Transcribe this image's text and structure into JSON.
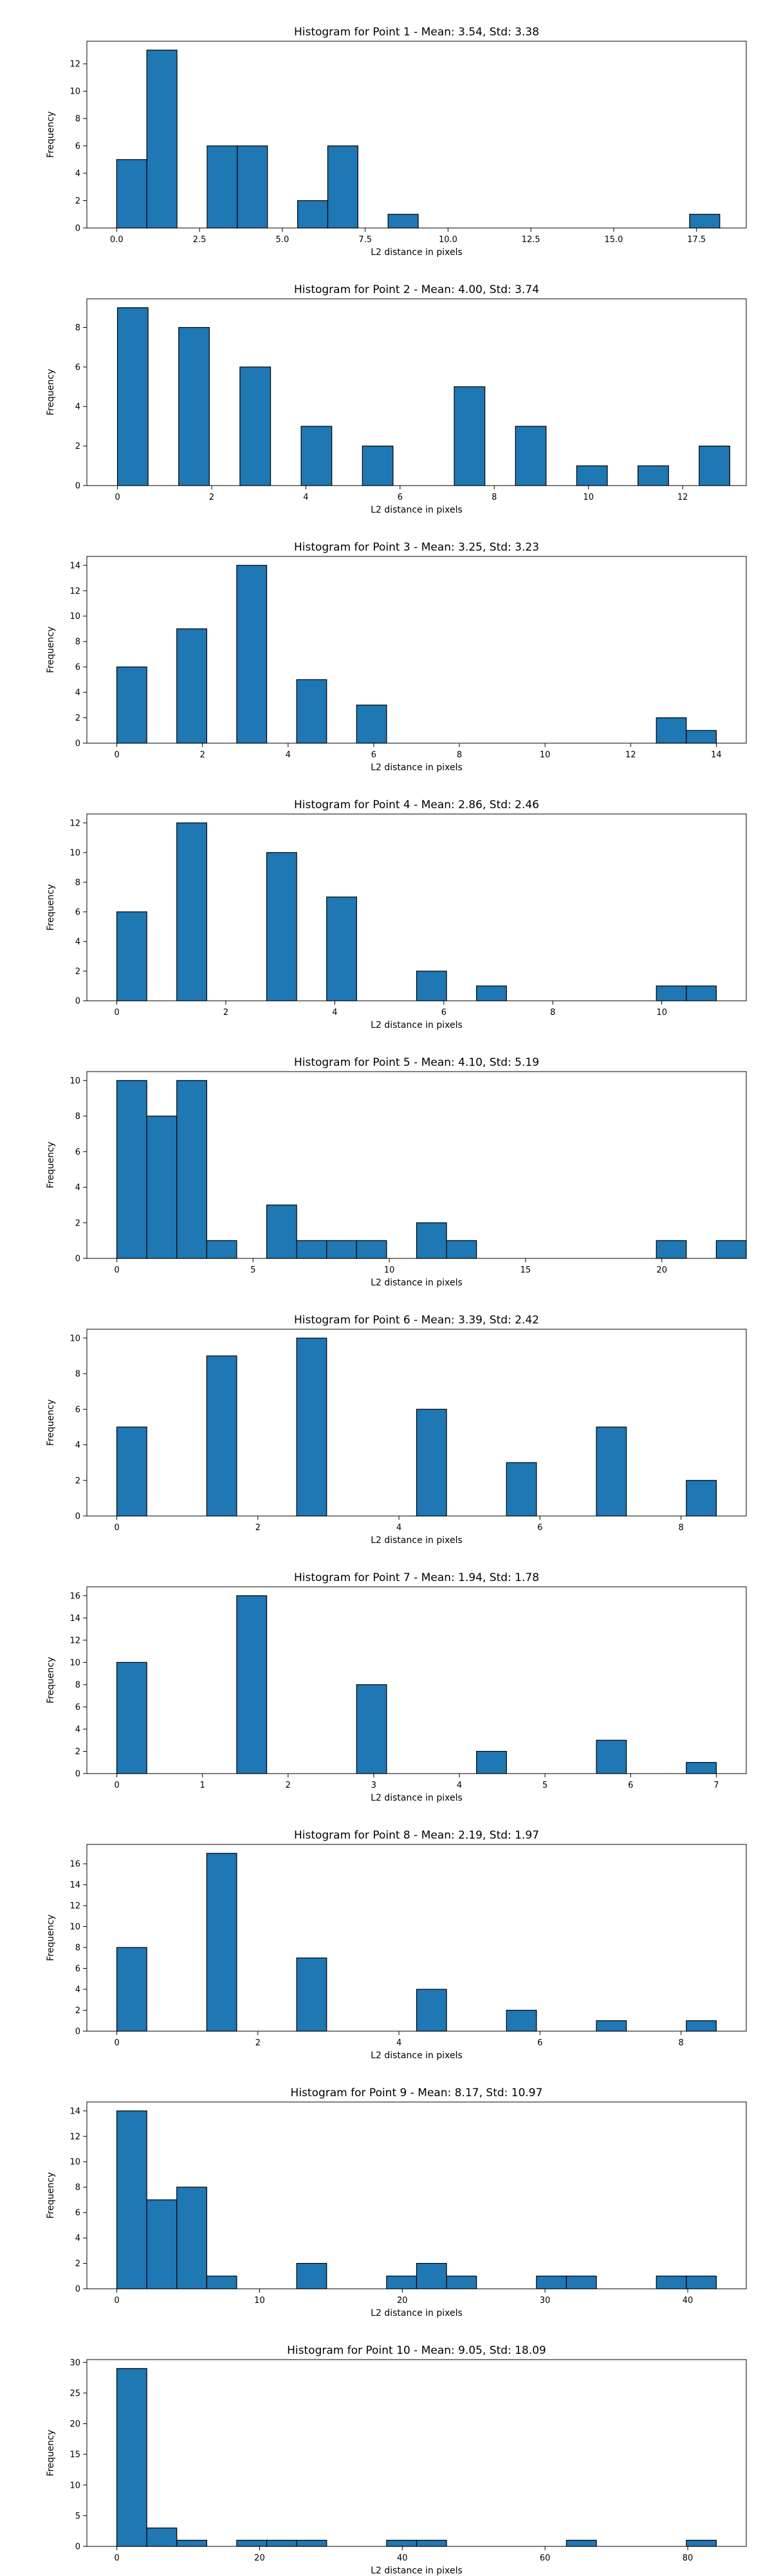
{
  "chart_data": [
    {
      "type": "bar",
      "title": "Histogram for Point 1 - Mean: 3.54, Std: 3.38",
      "xlabel": "L2 distance in pixels",
      "ylabel": "Frequency",
      "xlim": [
        -0.9,
        19.0
      ],
      "ylim": [
        0,
        13.65
      ],
      "xticks": [
        0,
        2.5,
        5,
        7.5,
        10,
        12.5,
        15,
        17.5
      ],
      "xtick_labels": [
        "0.0",
        "2.5",
        "5.0",
        "7.5",
        "10.0",
        "12.5",
        "15.0",
        "17.5"
      ],
      "yticks": [
        0,
        2,
        4,
        6,
        8,
        10,
        12
      ],
      "grid": false,
      "bins": [
        {
          "x0": 0.0,
          "x1": 0.91,
          "count": 5
        },
        {
          "x0": 0.91,
          "x1": 1.82,
          "count": 13
        },
        {
          "x0": 2.73,
          "x1": 3.64,
          "count": 6
        },
        {
          "x0": 3.64,
          "x1": 4.55,
          "count": 6
        },
        {
          "x0": 5.46,
          "x1": 6.37,
          "count": 2
        },
        {
          "x0": 6.37,
          "x1": 7.28,
          "count": 6
        },
        {
          "x0": 8.19,
          "x1": 9.1,
          "count": 1
        },
        {
          "x0": 17.29,
          "x1": 18.2,
          "count": 1
        }
      ]
    },
    {
      "type": "bar",
      "title": "Histogram for Point 2 - Mean: 4.00, Std: 3.74",
      "xlabel": "L2 distance in pixels",
      "ylabel": "Frequency",
      "xlim": [
        -0.65,
        13.35
      ],
      "ylim": [
        0,
        9.45
      ],
      "xticks": [
        0,
        2,
        4,
        6,
        8,
        10,
        12
      ],
      "xtick_labels": [
        "0",
        "2",
        "4",
        "6",
        "8",
        "10",
        "12"
      ],
      "yticks": [
        0,
        2,
        4,
        6,
        8
      ],
      "grid": false,
      "bins": [
        {
          "x0": 0.0,
          "x1": 0.65,
          "count": 9
        },
        {
          "x0": 1.3,
          "x1": 1.95,
          "count": 8
        },
        {
          "x0": 2.6,
          "x1": 3.25,
          "count": 6
        },
        {
          "x0": 3.9,
          "x1": 4.55,
          "count": 3
        },
        {
          "x0": 5.2,
          "x1": 5.85,
          "count": 2
        },
        {
          "x0": 7.15,
          "x1": 7.8,
          "count": 5
        },
        {
          "x0": 8.45,
          "x1": 9.1,
          "count": 3
        },
        {
          "x0": 9.75,
          "x1": 10.4,
          "count": 1
        },
        {
          "x0": 11.05,
          "x1": 11.7,
          "count": 1
        },
        {
          "x0": 12.35,
          "x1": 13.0,
          "count": 2
        }
      ]
    },
    {
      "type": "bar",
      "title": "Histogram for Point 3 - Mean: 3.25, Std: 3.23",
      "xlabel": "L2 distance in pixels",
      "ylabel": "Frequency",
      "xlim": [
        -0.7,
        14.7
      ],
      "ylim": [
        0,
        14.7
      ],
      "xticks": [
        0,
        2,
        4,
        6,
        8,
        10,
        12,
        14
      ],
      "xtick_labels": [
        "0",
        "2",
        "4",
        "6",
        "8",
        "10",
        "12",
        "14"
      ],
      "yticks": [
        0,
        2,
        4,
        6,
        8,
        10,
        12,
        14
      ],
      "grid": false,
      "bins": [
        {
          "x0": 0.0,
          "x1": 0.7,
          "count": 6
        },
        {
          "x0": 1.4,
          "x1": 2.1,
          "count": 9
        },
        {
          "x0": 2.8,
          "x1": 3.5,
          "count": 14
        },
        {
          "x0": 4.2,
          "x1": 4.9,
          "count": 5
        },
        {
          "x0": 5.6,
          "x1": 6.3,
          "count": 3
        },
        {
          "x0": 12.6,
          "x1": 13.3,
          "count": 2
        },
        {
          "x0": 13.3,
          "x1": 14.0,
          "count": 1
        }
      ]
    },
    {
      "type": "bar",
      "title": "Histogram for Point 4 - Mean: 2.86, Std: 2.46",
      "xlabel": "L2 distance in pixels",
      "ylabel": "Frequency",
      "xlim": [
        -0.55,
        11.55
      ],
      "ylim": [
        0,
        12.6
      ],
      "xticks": [
        0,
        2,
        4,
        6,
        8,
        10
      ],
      "xtick_labels": [
        "0",
        "2",
        "4",
        "6",
        "8",
        "10"
      ],
      "yticks": [
        0,
        2,
        4,
        6,
        8,
        10,
        12
      ],
      "grid": false,
      "bins": [
        {
          "x0": 0.0,
          "x1": 0.55,
          "count": 6
        },
        {
          "x0": 1.1,
          "x1": 1.65,
          "count": 12
        },
        {
          "x0": 2.75,
          "x1": 3.3,
          "count": 10
        },
        {
          "x0": 3.85,
          "x1": 4.4,
          "count": 7
        },
        {
          "x0": 5.5,
          "x1": 6.05,
          "count": 2
        },
        {
          "x0": 6.6,
          "x1": 7.15,
          "count": 1
        },
        {
          "x0": 9.9,
          "x1": 10.45,
          "count": 1
        },
        {
          "x0": 10.45,
          "x1": 11.0,
          "count": 1
        }
      ]
    },
    {
      "type": "bar",
      "title": "Histogram for Point 5 - Mean: 4.10, Std: 5.19",
      "xlabel": "L2 distance in pixels",
      "ylabel": "Frequency",
      "xlim": [
        -1.1,
        23.1
      ],
      "ylim": [
        0,
        10.5
      ],
      "xticks": [
        0,
        5,
        10,
        15,
        20
      ],
      "xtick_labels": [
        "0",
        "5",
        "10",
        "15",
        "20"
      ],
      "yticks": [
        0,
        2,
        4,
        6,
        8,
        10
      ],
      "grid": false,
      "bins": [
        {
          "x0": 0.0,
          "x1": 1.1,
          "count": 10
        },
        {
          "x0": 1.1,
          "x1": 2.2,
          "count": 8
        },
        {
          "x0": 2.2,
          "x1": 3.3,
          "count": 10
        },
        {
          "x0": 3.3,
          "x1": 4.4,
          "count": 1
        },
        {
          "x0": 5.5,
          "x1": 6.6,
          "count": 3
        },
        {
          "x0": 6.6,
          "x1": 7.7,
          "count": 1
        },
        {
          "x0": 7.7,
          "x1": 8.8,
          "count": 1
        },
        {
          "x0": 8.8,
          "x1": 9.9,
          "count": 1
        },
        {
          "x0": 11.0,
          "x1": 12.1,
          "count": 2
        },
        {
          "x0": 12.1,
          "x1": 13.2,
          "count": 1
        },
        {
          "x0": 19.8,
          "x1": 20.9,
          "count": 1
        },
        {
          "x0": 22.0,
          "x1": 23.1,
          "count": 1
        }
      ]
    },
    {
      "type": "bar",
      "title": "Histogram for Point 6 - Mean: 3.39, Std: 2.42",
      "xlabel": "L2 distance in pixels",
      "ylabel": "Frequency",
      "xlim": [
        -0.425,
        8.925
      ],
      "ylim": [
        0,
        10.5
      ],
      "xticks": [
        0,
        2,
        4,
        6,
        8
      ],
      "xtick_labels": [
        "0",
        "2",
        "4",
        "6",
        "8"
      ],
      "yticks": [
        0,
        2,
        4,
        6,
        8,
        10
      ],
      "grid": false,
      "bins": [
        {
          "x0": 0.0,
          "x1": 0.425,
          "count": 5
        },
        {
          "x0": 1.275,
          "x1": 1.7,
          "count": 9
        },
        {
          "x0": 2.55,
          "x1": 2.975,
          "count": 10
        },
        {
          "x0": 4.25,
          "x1": 4.675,
          "count": 6
        },
        {
          "x0": 5.525,
          "x1": 5.95,
          "count": 3
        },
        {
          "x0": 6.8,
          "x1": 7.225,
          "count": 5
        },
        {
          "x0": 8.075,
          "x1": 8.5,
          "count": 2
        }
      ]
    },
    {
      "type": "bar",
      "title": "Histogram for Point 7 - Mean: 1.94, Std: 1.78",
      "xlabel": "L2 distance in pixels",
      "ylabel": "Frequency",
      "xlim": [
        -0.35,
        7.35
      ],
      "ylim": [
        0,
        16.8
      ],
      "xticks": [
        0,
        1,
        2,
        3,
        4,
        5,
        6,
        7
      ],
      "xtick_labels": [
        "0",
        "1",
        "2",
        "3",
        "4",
        "5",
        "6",
        "7"
      ],
      "yticks": [
        0,
        2,
        4,
        6,
        8,
        10,
        12,
        14,
        16
      ],
      "grid": false,
      "bins": [
        {
          "x0": 0.0,
          "x1": 0.35,
          "count": 10
        },
        {
          "x0": 1.4,
          "x1": 1.75,
          "count": 16
        },
        {
          "x0": 2.8,
          "x1": 3.15,
          "count": 8
        },
        {
          "x0": 4.2,
          "x1": 4.55,
          "count": 2
        },
        {
          "x0": 5.6,
          "x1": 5.95,
          "count": 3
        },
        {
          "x0": 6.65,
          "x1": 7.0,
          "count": 1
        }
      ]
    },
    {
      "type": "bar",
      "title": "Histogram for Point 8 - Mean: 2.19, Std: 1.97",
      "xlabel": "L2 distance in pixels",
      "ylabel": "Frequency",
      "xlim": [
        -0.425,
        8.925
      ],
      "ylim": [
        0,
        17.85
      ],
      "xticks": [
        0,
        2,
        4,
        6,
        8
      ],
      "xtick_labels": [
        "0",
        "2",
        "4",
        "6",
        "8"
      ],
      "yticks": [
        0,
        2,
        4,
        6,
        8,
        10,
        12,
        14,
        16
      ],
      "grid": false,
      "bins": [
        {
          "x0": 0.0,
          "x1": 0.425,
          "count": 8
        },
        {
          "x0": 1.275,
          "x1": 1.7,
          "count": 17
        },
        {
          "x0": 2.55,
          "x1": 2.975,
          "count": 7
        },
        {
          "x0": 4.25,
          "x1": 4.675,
          "count": 4
        },
        {
          "x0": 5.525,
          "x1": 5.95,
          "count": 2
        },
        {
          "x0": 6.8,
          "x1": 7.225,
          "count": 1
        },
        {
          "x0": 8.075,
          "x1": 8.5,
          "count": 1
        }
      ]
    },
    {
      "type": "bar",
      "title": "Histogram for Point 9 - Mean: 8.17, Std: 10.97",
      "xlabel": "L2 distance in pixels",
      "ylabel": "Frequency",
      "xlim": [
        -2.1,
        44.1
      ],
      "ylim": [
        0,
        14.7
      ],
      "xticks": [
        0,
        10,
        20,
        30,
        40
      ],
      "xtick_labels": [
        "0",
        "10",
        "20",
        "30",
        "40"
      ],
      "yticks": [
        0,
        2,
        4,
        6,
        8,
        10,
        12,
        14
      ],
      "grid": false,
      "bins": [
        {
          "x0": 0.0,
          "x1": 2.1,
          "count": 14
        },
        {
          "x0": 2.1,
          "x1": 4.2,
          "count": 7
        },
        {
          "x0": 4.2,
          "x1": 6.3,
          "count": 8
        },
        {
          "x0": 6.3,
          "x1": 8.4,
          "count": 1
        },
        {
          "x0": 12.6,
          "x1": 14.7,
          "count": 2
        },
        {
          "x0": 18.9,
          "x1": 21.0,
          "count": 1
        },
        {
          "x0": 21.0,
          "x1": 23.1,
          "count": 2
        },
        {
          "x0": 23.1,
          "x1": 25.2,
          "count": 1
        },
        {
          "x0": 29.4,
          "x1": 31.5,
          "count": 1
        },
        {
          "x0": 31.5,
          "x1": 33.6,
          "count": 1
        },
        {
          "x0": 37.8,
          "x1": 39.9,
          "count": 1
        },
        {
          "x0": 39.9,
          "x1": 42.0,
          "count": 1
        }
      ]
    },
    {
      "type": "bar",
      "title": "Histogram for Point 10 - Mean: 9.05, Std: 18.09",
      "xlabel": "L2 distance in pixels",
      "ylabel": "Frequency",
      "xlim": [
        -4.2,
        88.2
      ],
      "ylim": [
        0,
        30.45
      ],
      "xticks": [
        0,
        20,
        40,
        60,
        80
      ],
      "xtick_labels": [
        "0",
        "20",
        "40",
        "60",
        "80"
      ],
      "yticks": [
        0,
        5,
        10,
        15,
        20,
        25,
        30
      ],
      "grid": false,
      "bins": [
        {
          "x0": 0.0,
          "x1": 4.2,
          "count": 29
        },
        {
          "x0": 4.2,
          "x1": 8.4,
          "count": 3
        },
        {
          "x0": 8.4,
          "x1": 12.6,
          "count": 1
        },
        {
          "x0": 16.8,
          "x1": 21.0,
          "count": 1
        },
        {
          "x0": 21.0,
          "x1": 25.2,
          "count": 1
        },
        {
          "x0": 25.2,
          "x1": 29.4,
          "count": 1
        },
        {
          "x0": 37.8,
          "x1": 42.0,
          "count": 1
        },
        {
          "x0": 42.0,
          "x1": 46.2,
          "count": 1
        },
        {
          "x0": 63.0,
          "x1": 67.2,
          "count": 1
        },
        {
          "x0": 79.8,
          "x1": 84.0,
          "count": 1
        }
      ]
    }
  ]
}
